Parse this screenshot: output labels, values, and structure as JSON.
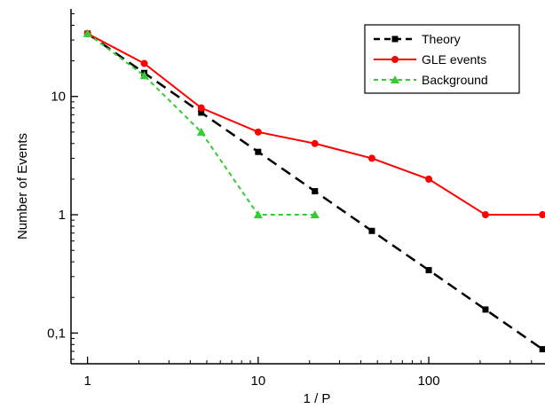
{
  "chart_data": {
    "type": "line",
    "title": "",
    "xlabel": "1 / P",
    "ylabel": "Number of Events",
    "xscale": "log",
    "yscale": "log",
    "xlim": [
      0.8,
      480
    ],
    "ylim": [
      0.055,
      55
    ],
    "x_ticks": [
      {
        "value": 1,
        "label": "1"
      },
      {
        "value": 10,
        "label": "10"
      },
      {
        "value": 100,
        "label": "100"
      }
    ],
    "y_ticks": [
      {
        "value": 0.1,
        "label": "0,1"
      },
      {
        "value": 1,
        "label": "1"
      },
      {
        "value": 10,
        "label": "10"
      }
    ],
    "grid": false,
    "legend_position": "top-right",
    "series": [
      {
        "name": "Theory",
        "color": "#000000",
        "line_style": "dashed",
        "marker": "square",
        "x": [
          1,
          2.15,
          4.64,
          10,
          21.5,
          46.4,
          100,
          215,
          464
        ],
        "y": [
          34,
          15.8,
          7.3,
          3.4,
          1.58,
          0.73,
          0.34,
          0.158,
          0.073
        ]
      },
      {
        "name": "GLE events",
        "color": "#ff0000",
        "line_style": "solid",
        "marker": "circle",
        "x": [
          1,
          2.15,
          4.64,
          10,
          21.5,
          46.4,
          100,
          215,
          464
        ],
        "y": [
          34,
          19,
          8,
          5,
          4,
          3,
          2,
          1,
          1
        ]
      },
      {
        "name": "Background",
        "color": "#33cc33",
        "line_style": "dotted",
        "marker": "triangle",
        "x": [
          1,
          2.15,
          4.64,
          10,
          21.5
        ],
        "y": [
          34,
          15,
          5,
          1,
          1
        ]
      }
    ]
  }
}
